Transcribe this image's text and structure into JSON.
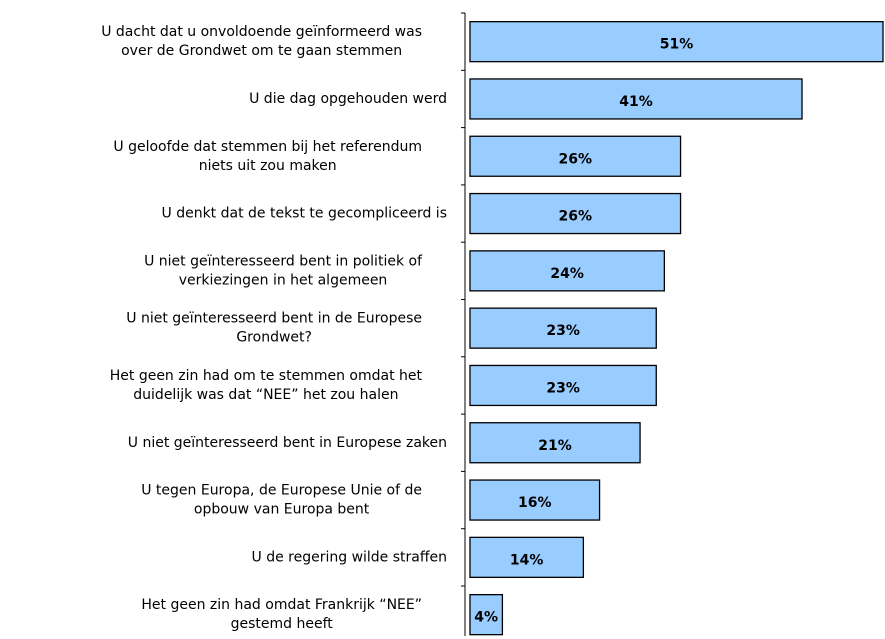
{
  "chart_data": {
    "type": "barh",
    "categories": [
      "U dacht dat u onvoldoende geïnformeerd was\nover de Grondwet om te gaan stemmen",
      "U die dag opgehouden werd",
      "U geloofde dat stemmen bij het referendum\nniets uit zou maken",
      "U denkt dat de tekst te gecompliceerd is",
      "U niet geïnteresseerd bent in politiek of\nverkiezingen in het algemeen",
      "U niet geïnteresseerd bent in de Europese\nGrondwet?",
      "Het geen zin had om te stemmen omdat het\nduidelijk was dat  “NEE” het zou halen",
      "U niet geïnteresseerd bent in Europese zaken",
      "U tegen Europa, de Europese Unie of de\nopbouw van Europa bent",
      "U de regering wilde straffen",
      "Het geen zin had omdat Frankrijk “NEE”\ngestemd heeft"
    ],
    "values": [
      51,
      41,
      26,
      26,
      24,
      23,
      23,
      21,
      16,
      14,
      4
    ],
    "value_labels": [
      "51%",
      "41%",
      "26%",
      "26%",
      "24%",
      "23%",
      "23%",
      "21%",
      "16%",
      "14%",
      "4%"
    ],
    "color": "#99ccff",
    "xlim": [
      0,
      51
    ]
  }
}
